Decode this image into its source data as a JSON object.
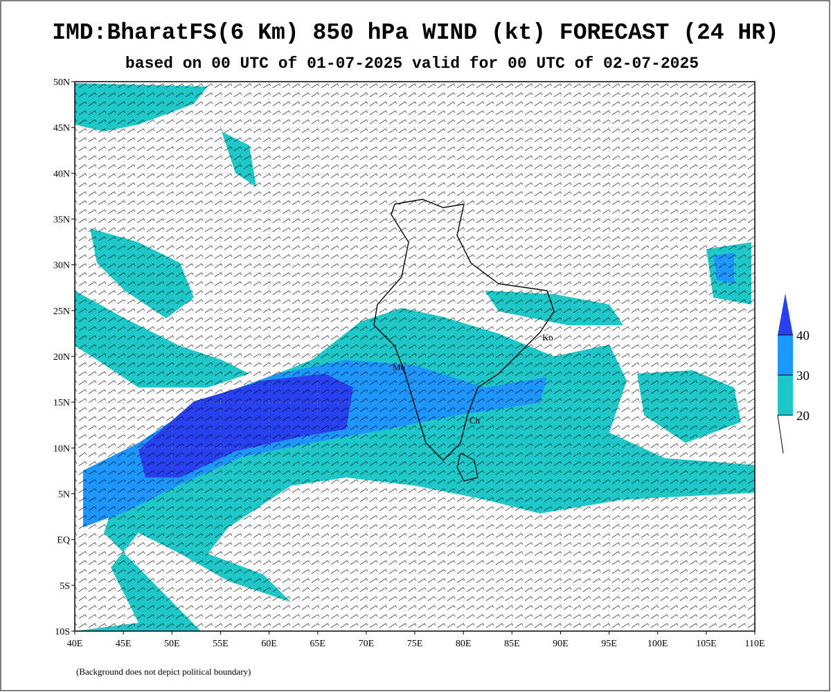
{
  "map": {
    "title": "IMD:BharatFS(6 Km) 850 hPa WIND (kt) FORECAST (24 HR)",
    "subtitle": "based on 00 UTC of 01-07-2025 valid for 00 UTC of 02-07-2025",
    "xlim": [
      40,
      110
    ],
    "ylim": [
      -10,
      50
    ],
    "xticks": [
      {
        "value": 40,
        "label": "40E"
      },
      {
        "value": 45,
        "label": "45E"
      },
      {
        "value": 50,
        "label": "50E"
      },
      {
        "value": 55,
        "label": "55E"
      },
      {
        "value": 60,
        "label": "60E"
      },
      {
        "value": 65,
        "label": "65E"
      },
      {
        "value": 70,
        "label": "70E"
      },
      {
        "value": 75,
        "label": "75E"
      },
      {
        "value": 80,
        "label": "80E"
      },
      {
        "value": 85,
        "label": "85E"
      },
      {
        "value": 90,
        "label": "90E"
      },
      {
        "value": 95,
        "label": "95E"
      },
      {
        "value": 100,
        "label": "100E"
      },
      {
        "value": 105,
        "label": "105E"
      },
      {
        "value": 110,
        "label": "110E"
      }
    ],
    "yticks": [
      {
        "value": -10,
        "label": "10S"
      },
      {
        "value": -5,
        "label": "5S"
      },
      {
        "value": 0,
        "label": "EQ"
      },
      {
        "value": 5,
        "label": "5N"
      },
      {
        "value": 10,
        "label": "10N"
      },
      {
        "value": 15,
        "label": "15N"
      },
      {
        "value": 20,
        "label": "20N"
      },
      {
        "value": 25,
        "label": "25N"
      },
      {
        "value": 30,
        "label": "30N"
      },
      {
        "value": 35,
        "label": "35N"
      },
      {
        "value": 40,
        "label": "40N"
      },
      {
        "value": 45,
        "label": "45N"
      },
      {
        "value": 50,
        "label": "50N"
      }
    ],
    "colorbar": {
      "levels": [
        20,
        30,
        40
      ],
      "colors": [
        "#1ec8c8",
        "#1e96ff",
        "#2841f0"
      ]
    },
    "cities": [
      "Mu",
      "Ko",
      "Ch"
    ],
    "footnote": "(Background does not depict political boundary)"
  }
}
